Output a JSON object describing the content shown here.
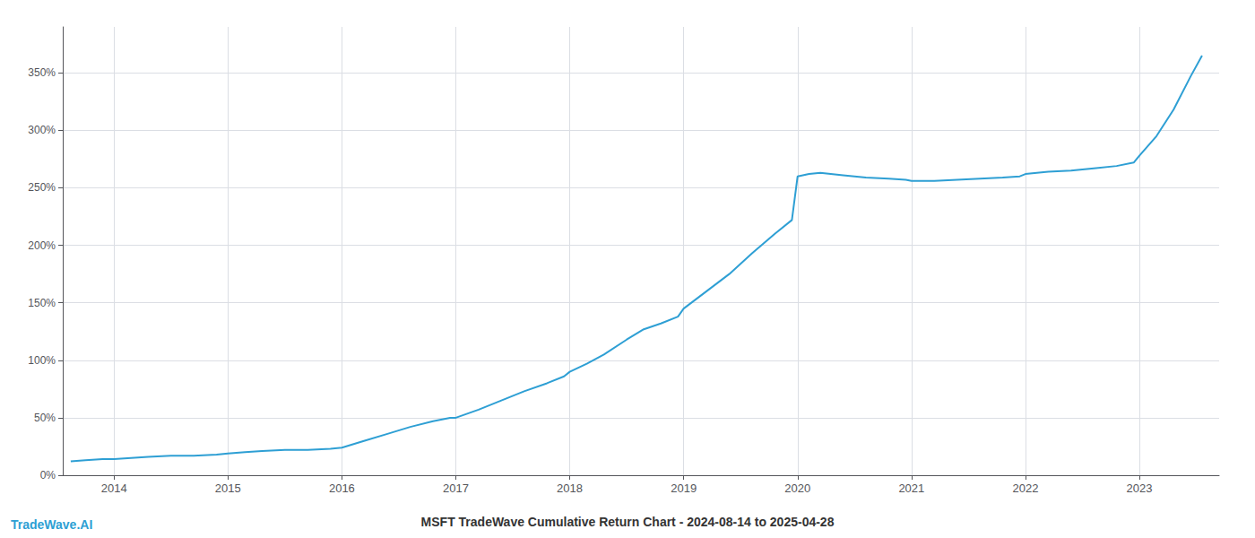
{
  "chart_data": {
    "type": "line",
    "title": "MSFT TradeWave Cumulative Return Chart - 2024-08-14 to 2025-04-28",
    "annotations": [
      {
        "text": "TradeWave.AI",
        "color": "#2e9fd4"
      }
    ],
    "color": "#2e9fd4",
    "grid": true,
    "x": [
      2013.62,
      2013.75,
      2013.9,
      2014.0,
      2014.15,
      2014.3,
      2014.5,
      2014.7,
      2014.9,
      2015.0,
      2015.15,
      2015.3,
      2015.5,
      2015.7,
      2015.9,
      2016.0,
      2016.2,
      2016.4,
      2016.6,
      2016.8,
      2016.95,
      2017.0,
      2017.2,
      2017.4,
      2017.6,
      2017.8,
      2017.95,
      2018.0,
      2018.15,
      2018.3,
      2018.5,
      2018.65,
      2018.8,
      2018.95,
      2019.0,
      2019.2,
      2019.4,
      2019.6,
      2019.8,
      2019.95,
      2020.0,
      2020.1,
      2020.2,
      2020.4,
      2020.6,
      2020.8,
      2020.95,
      2021.0,
      2021.2,
      2021.4,
      2021.6,
      2021.8,
      2021.95,
      2022.0,
      2022.2,
      2022.4,
      2022.6,
      2022.8,
      2022.95,
      2023.0,
      2023.15,
      2023.3,
      2023.45,
      2023.55
    ],
    "values": [
      12,
      13,
      14,
      14,
      15,
      16,
      17,
      17,
      18,
      19,
      20,
      21,
      22,
      22,
      23,
      24,
      30,
      36,
      42,
      47,
      50,
      50,
      57,
      65,
      73,
      80,
      86,
      90,
      97,
      105,
      118,
      127,
      132,
      138,
      145,
      160,
      175,
      193,
      210,
      222,
      260,
      262,
      263,
      261,
      259,
      258,
      257,
      256,
      256,
      257,
      258,
      259,
      260,
      262,
      264,
      265,
      267,
      269,
      272,
      278,
      295,
      318,
      347,
      365
    ],
    "xlim": [
      2013.55,
      2023.7
    ],
    "xticks": [
      2014,
      2015,
      2016,
      2017,
      2018,
      2019,
      2020,
      2021,
      2022,
      2023
    ],
    "ylim": [
      0,
      390
    ],
    "yticks": [
      {
        "value": 0,
        "label": "0%"
      },
      {
        "value": 50,
        "label": "50%"
      },
      {
        "value": 100,
        "label": "100%"
      },
      {
        "value": 150,
        "label": "150%"
      },
      {
        "value": 200,
        "label": "200%"
      },
      {
        "value": 250,
        "label": "250%"
      },
      {
        "value": 300,
        "label": "300%"
      },
      {
        "value": 350,
        "label": "350%"
      }
    ]
  }
}
